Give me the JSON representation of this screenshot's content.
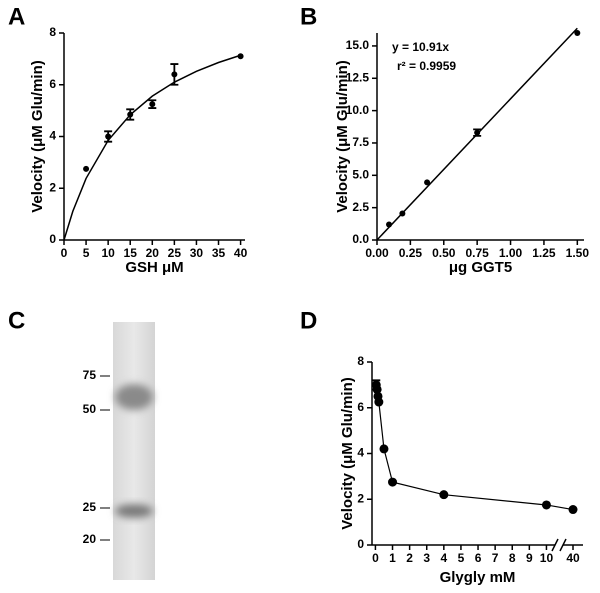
{
  "chart_data": [
    {
      "panel": "A",
      "type": "scatter",
      "color": "#000000",
      "x": [
        5,
        10,
        15,
        20,
        25,
        40
      ],
      "values": [
        2.75,
        4.0,
        4.85,
        5.25,
        6.4,
        7.1
      ],
      "errors": [
        null,
        0.2,
        0.2,
        0.15,
        0.4,
        null
      ],
      "fit": {
        "x": [
          0,
          2,
          5,
          10,
          15,
          20,
          25,
          30,
          35,
          40
        ],
        "values": [
          0,
          1.11,
          2.38,
          3.85,
          4.84,
          5.56,
          6.1,
          6.52,
          6.86,
          7.14
        ]
      },
      "xlabel": "GSH μM",
      "ylabel": "Velocity (μM Glu/min)",
      "xlim": [
        0,
        41
      ],
      "ylim": [
        0,
        8
      ],
      "xticks": [
        0,
        5,
        10,
        15,
        20,
        25,
        30,
        35,
        40
      ],
      "yticks": [
        0,
        2,
        4,
        6,
        8
      ]
    },
    {
      "panel": "B",
      "type": "scatter",
      "color": "#000000",
      "x": [
        0.09,
        0.19,
        0.375,
        0.75,
        1.5
      ],
      "values": [
        1.2,
        2.05,
        4.45,
        8.3,
        16.0
      ],
      "errors": [
        null,
        null,
        null,
        0.25,
        null
      ],
      "fit": {
        "x": [
          0,
          1.5
        ],
        "values": [
          0,
          16.37
        ]
      },
      "annotations": [
        "y = 10.91x",
        "r² = 0.9959"
      ],
      "xlabel": "μg GGT5",
      "ylabel": "Velocity (μM Glu/min)",
      "xlim": [
        0,
        1.55
      ],
      "ylim": [
        0,
        16
      ],
      "xticks": [
        {
          "value": 0,
          "label": "0.00"
        },
        {
          "value": 0.25,
          "label": "0.25"
        },
        {
          "value": 0.5,
          "label": "0.50"
        },
        {
          "value": 0.75,
          "label": "0.75"
        },
        {
          "value": 1,
          "label": "1.00"
        },
        {
          "value": 1.25,
          "label": "1.25"
        },
        {
          "value": 1.5,
          "label": "1.50"
        }
      ],
      "yticks": [
        {
          "value": 0,
          "label": "0.0"
        },
        {
          "value": 2.5,
          "label": "2.5"
        },
        {
          "value": 5,
          "label": "5.0"
        },
        {
          "value": 7.5,
          "label": "7.5"
        },
        {
          "value": 10,
          "label": "10.0"
        },
        {
          "value": 12.5,
          "label": "12.5"
        },
        {
          "value": 15,
          "label": "15.0"
        }
      ]
    },
    {
      "panel": "C",
      "type": "gel",
      "marker_labels": [
        "75",
        "50",
        "25",
        "20"
      ]
    },
    {
      "panel": "D",
      "type": "line",
      "color": "#000000",
      "x": [
        0.05,
        0.1,
        0.15,
        0.2,
        0.5,
        1,
        4,
        10,
        40
      ],
      "values": [
        7.0,
        6.8,
        6.5,
        6.25,
        4.2,
        2.75,
        2.2,
        1.75,
        1.55
      ],
      "errors": [
        0.2,
        null,
        null,
        null,
        null,
        null,
        null,
        null,
        null
      ],
      "xlabel": "Glygly mM",
      "ylabel": "Velocity (μM Glu/min)",
      "xsegments": [
        [
          -0.2,
          10.5
        ],
        [
          39,
          41
        ]
      ],
      "ylim": [
        0,
        8
      ],
      "xticks": [
        0,
        1,
        2,
        3,
        4,
        5,
        6,
        7,
        8,
        9,
        10,
        40
      ],
      "yticks": [
        0,
        2,
        4,
        6,
        8
      ]
    }
  ]
}
